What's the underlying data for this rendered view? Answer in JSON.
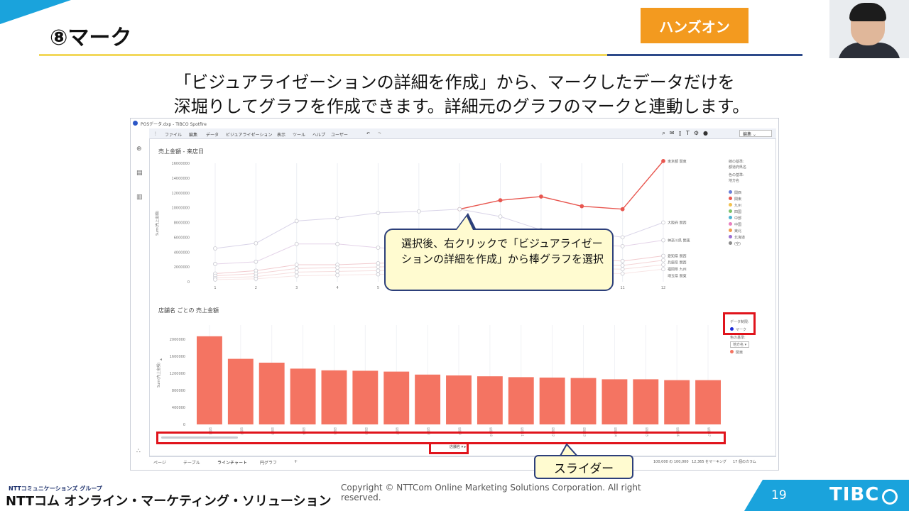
{
  "slide": {
    "title": "⑧マーク",
    "badge": "ハンズオン",
    "description_line1": "「ビジュアライゼーションの詳細を作成」から、マークしたデータだけを",
    "description_line2": "深堀りしてグラフを作成できます。詳細元のグラフのマークと連動します。",
    "page_number": "19"
  },
  "app": {
    "window_title": "POSデータ.dxp - TIBCO Spotfire",
    "menu": [
      "ファイル",
      "編集",
      "データ",
      "ビジュアライゼーション",
      "表示",
      "ツール",
      "ヘルプ",
      "ユーザー"
    ],
    "mode_select": "編集",
    "toolbar_icons": [
      "search-icon",
      "megaphone-icon",
      "bookmark-icon",
      "text-icon",
      "gear-icon",
      "user-icon"
    ],
    "tabs": [
      "ページ",
      "テーブル",
      "ラインチャート",
      "円グラフ",
      "+"
    ],
    "status": {
      "rows": "100,000 の 100,000",
      "marked": "12,365 をマーキング",
      "columns": "17 個のカラム"
    }
  },
  "colors": {
    "line_highlight": "#e8564f",
    "bar": "#f47462",
    "accent_blue": "#1aa3dc",
    "badge_orange": "#f39a1f",
    "callout_fill": "#fffbd0",
    "red_box": "#e0141c"
  },
  "line_chart": {
    "title": "売上金額 - 来店日",
    "legend": {
      "lines": [
        "線の基準:",
        "都道府県名",
        "色の基準:",
        "地方名"
      ],
      "items": [
        {
          "label": "関西",
          "color": "#6a7fd8"
        },
        {
          "label": "関東",
          "color": "#e8564f"
        },
        {
          "label": "九州",
          "color": "#f2c14e"
        },
        {
          "label": "四国",
          "color": "#7cc36a"
        },
        {
          "label": "中部",
          "color": "#4bb3d1"
        },
        {
          "label": "中国",
          "color": "#e87fbf"
        },
        {
          "label": "東北",
          "color": "#f29b4b"
        },
        {
          "label": "北海道",
          "color": "#9b6fd1"
        },
        {
          "label": "(空)",
          "color": "#8a8a8a"
        }
      ]
    },
    "series_labels": [
      "東京都 関東",
      "大阪府 関西",
      "神奈川県 関東",
      "愛知県 関西",
      "兵庫県 関西",
      "福岡県 九州",
      "埼玉県 関東"
    ]
  },
  "bar_chart": {
    "title": "店舗名 ごとの 売上金額",
    "legend": {
      "data_limit": "データ制限:",
      "marking": "マーク",
      "color_by": "色の基準:",
      "region": "地方名",
      "item": "関東"
    },
    "filter_dropdown": "店舗名"
  },
  "callout_main": "選択後、右クリックで「ビジュアライゼーションの詳細を作成」から棒グラフを選択",
  "callout_slider": "スライダー",
  "footer": {
    "group": "NTTコミュニケーションズ グループ",
    "brand": "NTTコム オンライン・マーケティング・ソリューション",
    "copyright": "Copyright © NTTCom Online Marketing Solutions Corporation. All right reserved.",
    "logo": "TIBC"
  },
  "chart_data": [
    {
      "type": "line",
      "title": "売上金額 - 来店日",
      "xlabel": "",
      "ylabel": "Sum(売上金額)",
      "x": [
        1,
        2,
        3,
        4,
        5,
        6,
        7,
        8,
        9,
        10,
        11,
        12
      ],
      "ylim": [
        0,
        16000000
      ],
      "yticks": [
        0,
        2000000,
        4000000,
        6000000,
        8000000,
        10000000,
        12000000,
        14000000,
        16000000
      ],
      "series": [
        {
          "name": "東京都 関東",
          "values": [
            null,
            null,
            null,
            null,
            null,
            null,
            9800000,
            11000000,
            11500000,
            10200000,
            9800000,
            16300000
          ]
        },
        {
          "name": "大阪府 関西",
          "values": [
            4500000,
            5200000,
            8200000,
            8600000,
            9300000,
            9500000,
            9800000,
            8800000,
            7000000,
            6800000,
            6000000,
            8000000
          ]
        },
        {
          "name": "神奈川県 関東",
          "values": [
            2400000,
            2700000,
            5100000,
            5100000,
            4600000,
            4300000,
            4100000,
            4700000,
            6500000,
            5000000,
            4800000,
            5600000
          ]
        },
        {
          "name": "愛知県 関西",
          "values": [
            1100000,
            1500000,
            2300000,
            2300000,
            2500000,
            2600000,
            2700000,
            2800000,
            2900000,
            3000000,
            2800000,
            3500000
          ]
        },
        {
          "name": "兵庫県 関西",
          "values": [
            800000,
            1100000,
            1800000,
            1900000,
            2000000,
            2100000,
            2200000,
            2300000,
            2400000,
            2300000,
            2200000,
            2900000
          ]
        },
        {
          "name": "福岡県 九州",
          "values": [
            500000,
            700000,
            1300000,
            1400000,
            1500000,
            1600000,
            1700000,
            1700000,
            1800000,
            1800000,
            1700000,
            2300000
          ]
        },
        {
          "name": "埼玉県 関東",
          "values": [
            300000,
            400000,
            800000,
            900000,
            1000000,
            1100000,
            1100000,
            1200000,
            1200000,
            1200000,
            1100000,
            1700000
          ]
        }
      ],
      "legend": "right",
      "grid": "vertical"
    },
    {
      "type": "bar",
      "title": "店舗名 ごとの 売上金額",
      "ylabel": "Sum(売上金額)",
      "categories": [
        "店舗1",
        "店舗2",
        "店舗3",
        "店舗4",
        "店舗5",
        "店舗6",
        "店舗7",
        "店舗8",
        "店舗9",
        "店舗10",
        "店舗11",
        "店舗12",
        "店舗13",
        "店舗14",
        "店舗15",
        "店舗16",
        "店舗17"
      ],
      "values": [
        2070000,
        1540000,
        1450000,
        1310000,
        1270000,
        1260000,
        1240000,
        1170000,
        1150000,
        1130000,
        1110000,
        1100000,
        1090000,
        1060000,
        1060000,
        1040000,
        1040000
      ],
      "ylim": [
        0,
        2200000
      ],
      "yticks": [
        0,
        400000,
        800000,
        1200000,
        1600000,
        2000000
      ],
      "grid": "vertical"
    }
  ]
}
